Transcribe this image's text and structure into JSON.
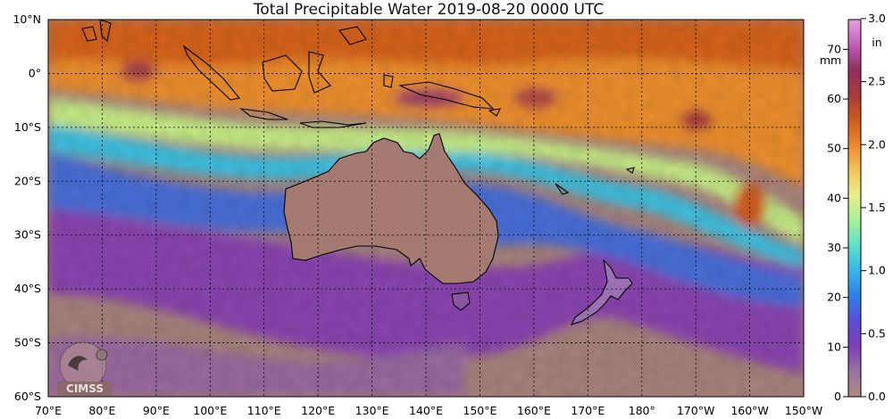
{
  "title": "Total Precipitable Water  2019-08-20 0000 UTC",
  "map": {
    "lat_labels": [
      "10°N",
      "0°",
      "10°S",
      "20°S",
      "30°S",
      "40°S",
      "50°S",
      "60°S"
    ],
    "lon_labels": [
      "70°E",
      "80°E",
      "90°E",
      "100°E",
      "110°E",
      "120°E",
      "130°E",
      "140°E",
      "150°E",
      "160°E",
      "170°E",
      "180°",
      "170°W",
      "160°W",
      "150°W"
    ],
    "lat_range": [
      -60,
      10
    ],
    "lon_range": [
      70,
      210
    ],
    "grid": true,
    "projection": "equirectangular"
  },
  "colorbar": {
    "mm_unit": "mm",
    "in_unit": "in",
    "mm_ticks": [
      "0",
      "10",
      "20",
      "30",
      "40",
      "50",
      "60",
      "70"
    ],
    "in_ticks": [
      "0.0",
      "0.5",
      "1.0",
      "1.5",
      "2.0",
      "2.5",
      "3.0"
    ],
    "range_mm": [
      0,
      76
    ],
    "colors": [
      "#b08a7e",
      "#9a72a4",
      "#7d3fb8",
      "#5a4fd4",
      "#2f7de8",
      "#36b6e8",
      "#5fe0c8",
      "#a8ef9a",
      "#e8ef8c",
      "#f3c45a",
      "#ea8c2e",
      "#cf5a1e",
      "#a83a3e",
      "#8e2f60",
      "#c060b8",
      "#e6a0de"
    ]
  },
  "logo": {
    "text": "CIMSS"
  }
}
